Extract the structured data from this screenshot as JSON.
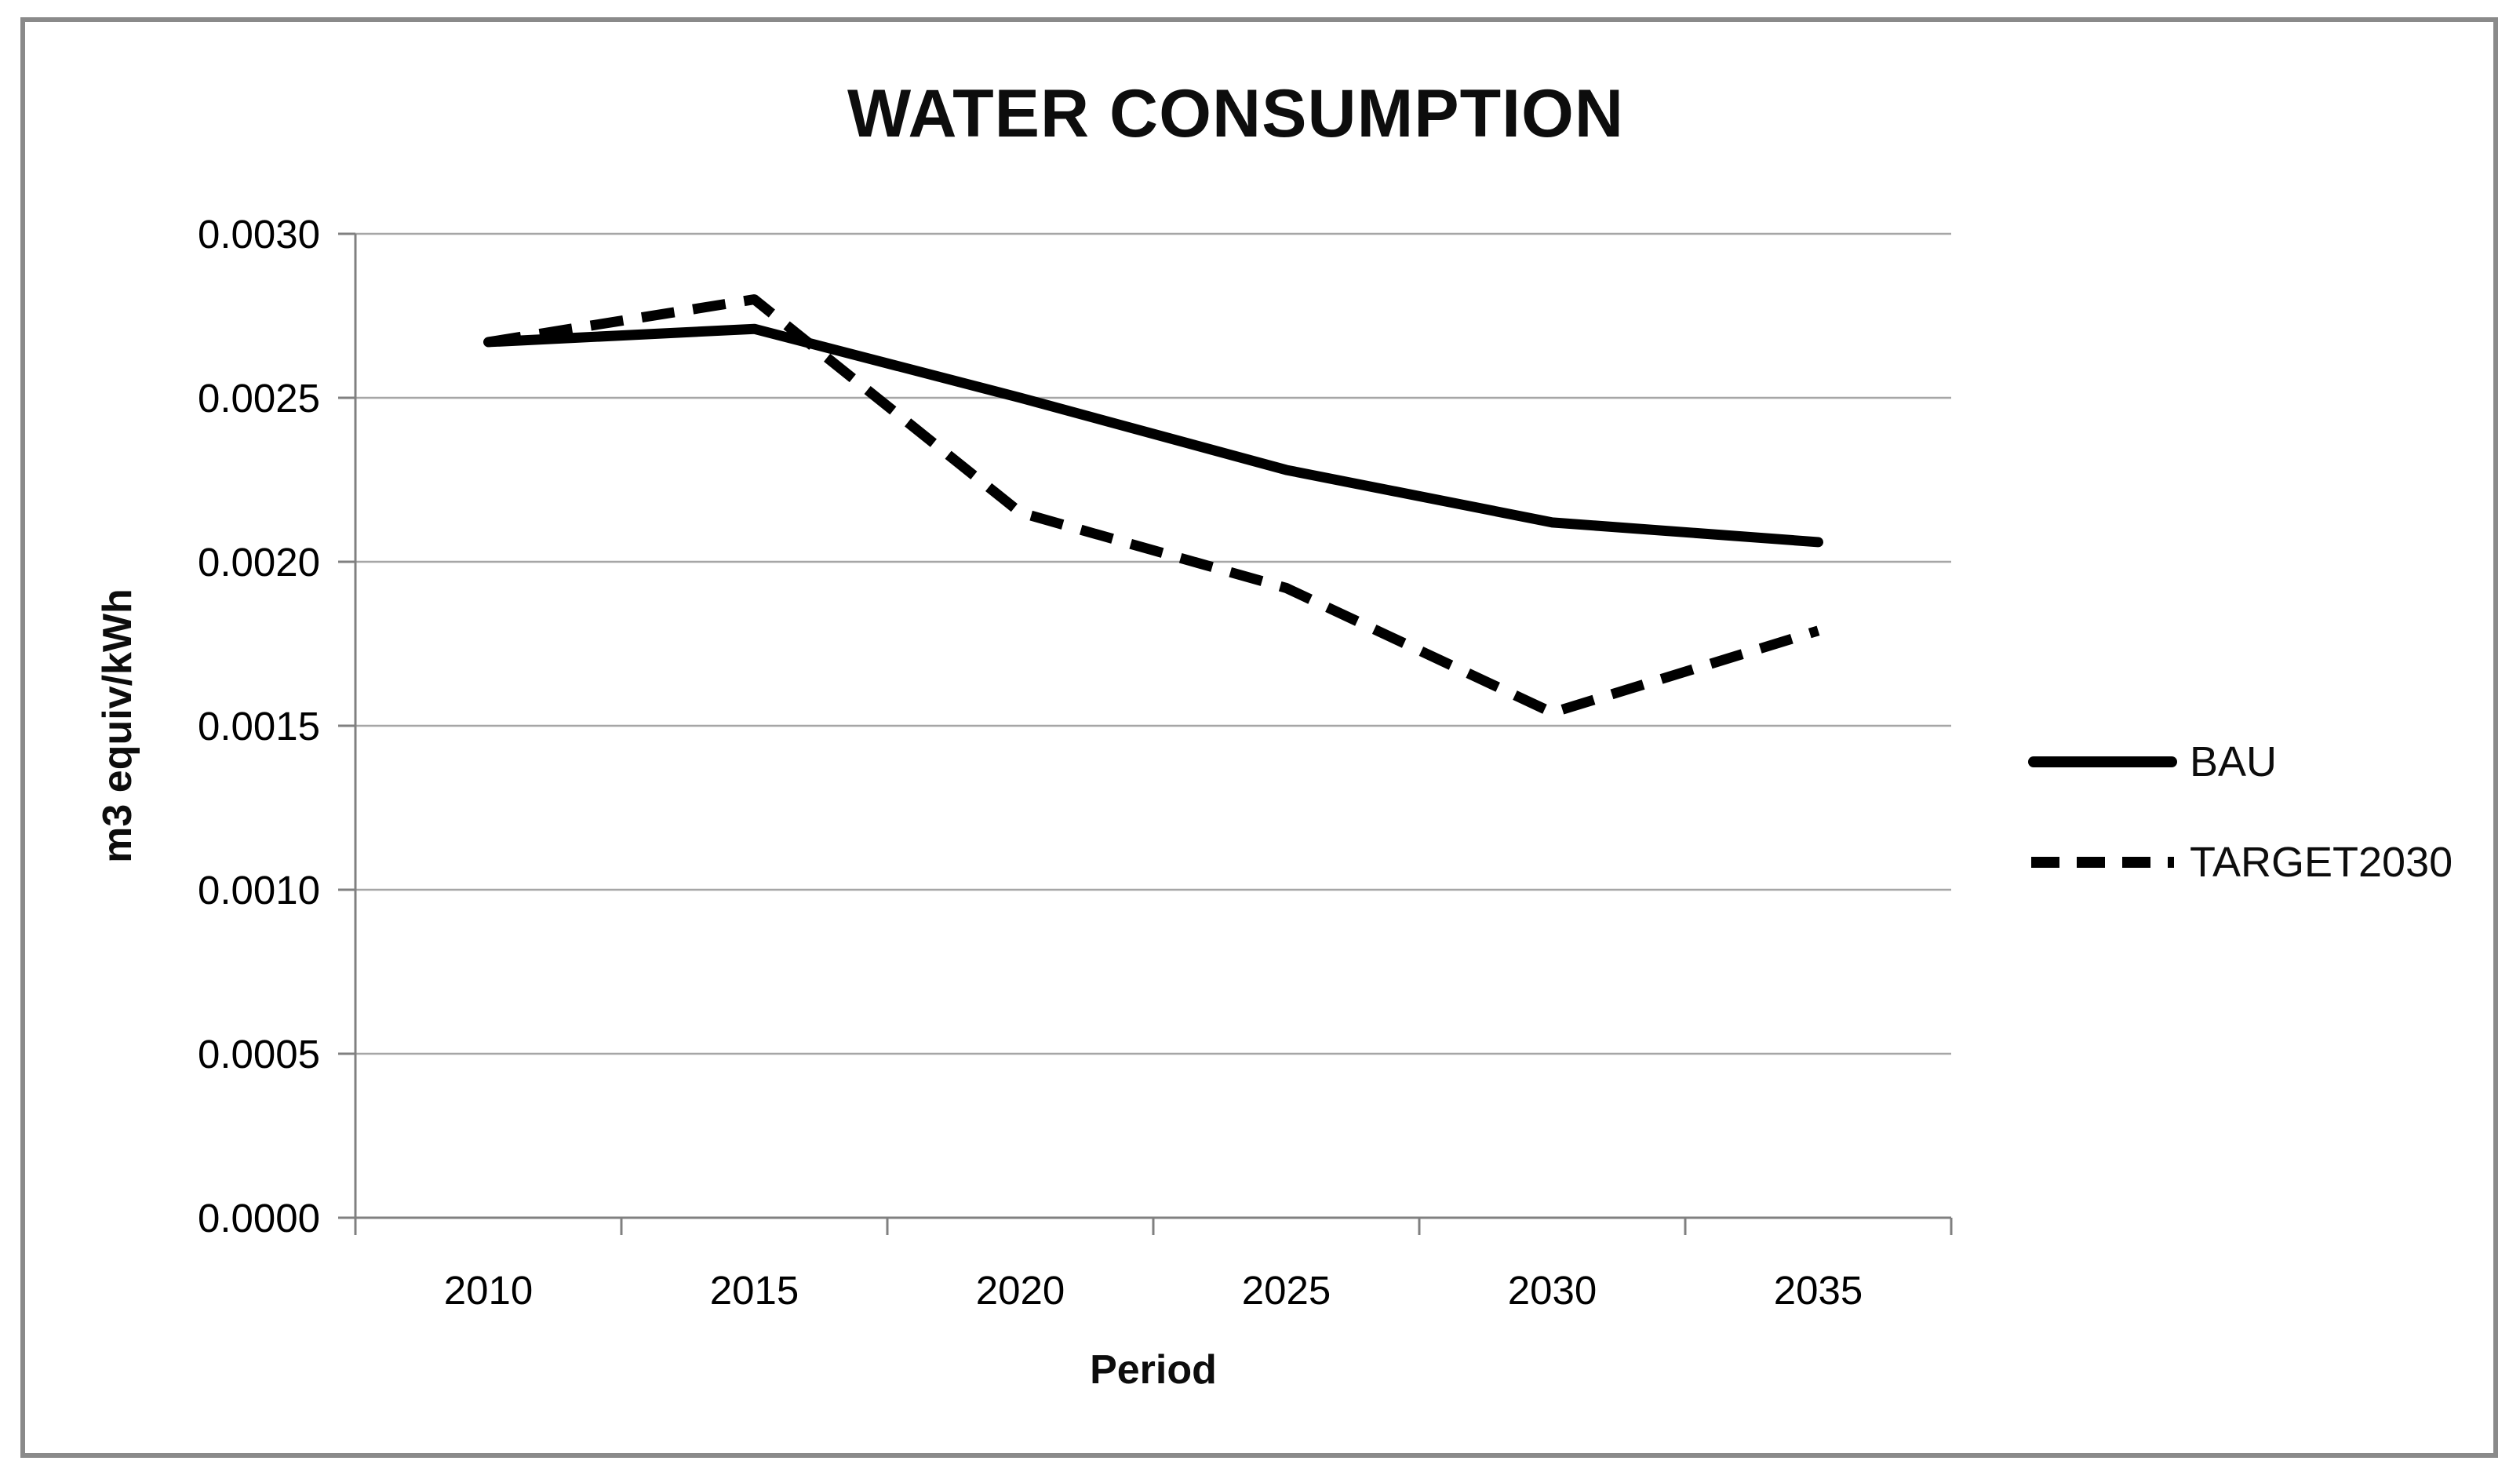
{
  "chart_data": {
    "type": "line",
    "title": "WATER CONSUMPTION",
    "xlabel": "Period",
    "ylabel": "m3 equiv/kWh",
    "categories": [
      "2010",
      "2015",
      "2020",
      "2025",
      "2030",
      "2035"
    ],
    "series": [
      {
        "name": "BAU",
        "style": "solid",
        "color": "#000000",
        "values": [
          0.00267,
          0.00271,
          0.0025,
          0.00228,
          0.00212,
          0.00206
        ]
      },
      {
        "name": "TARGET2030",
        "style": "dashed",
        "color": "#000000",
        "values": [
          0.00267,
          0.0028,
          0.00215,
          0.00192,
          0.00154,
          0.00179
        ]
      }
    ],
    "ylim": [
      0,
      0.003
    ],
    "ytick_step": 0.0005,
    "ytick_labels": [
      "0.0000",
      "0.0005",
      "0.0010",
      "0.0015",
      "0.0020",
      "0.0025",
      "0.0030"
    ],
    "grid": true,
    "legend_position": "right",
    "colors": {
      "line": "#000000",
      "gridline": "#a6a6a6",
      "axis": "#808080",
      "frame": "#8a8a8a",
      "text": "#000000"
    }
  }
}
